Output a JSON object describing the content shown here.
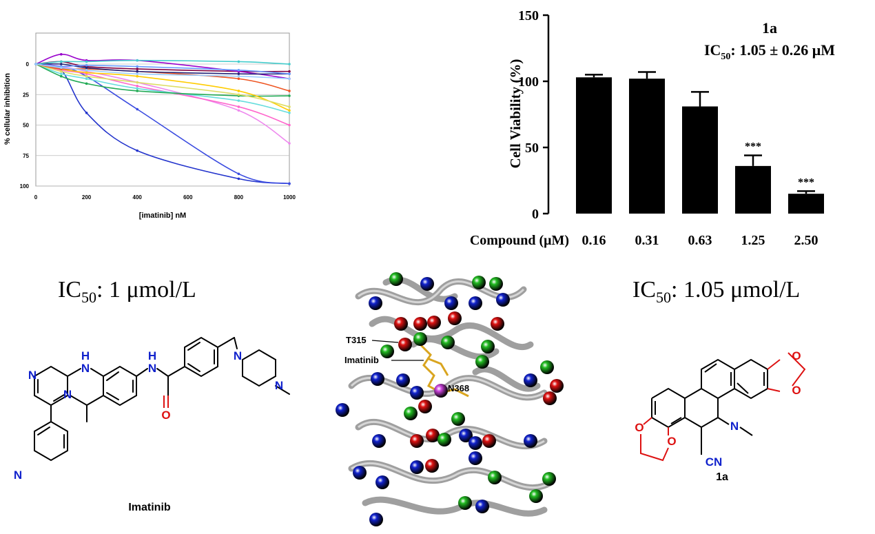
{
  "chart_data": [
    {
      "type": "line",
      "title": "",
      "xlabel": "[imatinib] nM",
      "ylabel": "% cellular inhibition",
      "xlim": [
        0,
        1000
      ],
      "ylim": [
        0,
        100
      ],
      "y_inverted": true,
      "x_ticks": [
        0,
        200,
        400,
        600,
        800,
        1000
      ],
      "y_ticks": [
        0,
        25,
        50,
        75,
        100
      ],
      "x_tick_labels": [
        "0",
        "200",
        "400",
        "600",
        "800",
        "1000"
      ],
      "y_tick_labels": [
        "0",
        "25",
        "50",
        "75",
        "100"
      ],
      "grid": "horizontal",
      "legend": "none",
      "x": [
        0,
        100,
        200,
        400,
        800,
        1000
      ],
      "series": [
        {
          "color": "#2233cc",
          "values": [
            0,
            5,
            40,
            71,
            94,
            98
          ]
        },
        {
          "color": "#3a4be0",
          "values": [
            0,
            2,
            10,
            37,
            90,
            98
          ]
        },
        {
          "color": "#ee88ee",
          "values": [
            0,
            2,
            6,
            15,
            38,
            65
          ]
        },
        {
          "color": "#ff66cc",
          "values": [
            0,
            5,
            8,
            18,
            35,
            50
          ]
        },
        {
          "color": "#66dddd",
          "values": [
            0,
            8,
            12,
            20,
            30,
            40
          ]
        },
        {
          "color": "#22aa55",
          "values": [
            0,
            10,
            16,
            22,
            26,
            26
          ]
        },
        {
          "color": "#ffcc00",
          "values": [
            0,
            4,
            7,
            10,
            22,
            38
          ]
        },
        {
          "color": "#dddd66",
          "values": [
            0,
            6,
            10,
            15,
            25,
            35
          ]
        },
        {
          "color": "#ee5522",
          "values": [
            0,
            4,
            4,
            6,
            12,
            22
          ]
        },
        {
          "color": "#800040",
          "values": [
            0,
            -2,
            2,
            4,
            6,
            6
          ]
        },
        {
          "color": "#9900cc",
          "values": [
            0,
            -8,
            -3,
            -3,
            6,
            12
          ]
        },
        {
          "color": "#222277",
          "values": [
            0,
            0,
            3,
            6,
            8,
            8
          ]
        },
        {
          "color": "#44cccc",
          "values": [
            0,
            -2,
            -2,
            -3,
            -2,
            0
          ]
        },
        {
          "color": "#6699ff",
          "values": [
            0,
            2,
            1,
            2,
            5,
            8
          ]
        },
        {
          "color": "#99ccff",
          "values": [
            0,
            3,
            5,
            8,
            10,
            12
          ]
        }
      ]
    },
    {
      "type": "bar",
      "title": "1a",
      "subtitle_prefix": "IC",
      "subtitle_sub": "50",
      "subtitle_suffix": ": 1.05 ± 0.26 μM",
      "xlabel": "Compound (μM)",
      "ylabel": "Cell Viability (%)",
      "categories": [
        "0.16",
        "0.31",
        "0.63",
        "1.25",
        "2.50"
      ],
      "values": [
        103,
        102,
        81,
        36,
        15
      ],
      "errors": [
        2,
        5,
        11,
        8,
        2
      ],
      "significance": [
        "",
        "",
        "",
        "***",
        "***"
      ],
      "ylim": [
        0,
        150
      ],
      "y_ticks": [
        0,
        50,
        100,
        150
      ],
      "y_tick_labels": [
        "0",
        "50",
        "100",
        "150"
      ],
      "bar_color": "#000000",
      "grid": "off",
      "legend": "none"
    }
  ],
  "labels": {
    "left_ic50_prefix": "IC",
    "left_ic50_sub": "50",
    "left_ic50_value": ":  1 μmol/L",
    "right_ic50_prefix": "IC",
    "right_ic50_sub": "50",
    "right_ic50_value": ":  1.05 μmol/L"
  },
  "imatinib_structure": {
    "name": "Imatinib",
    "atoms": [
      "N",
      "N",
      "N",
      "H",
      "N",
      "H",
      "O",
      "N",
      "N",
      "N"
    ]
  },
  "compound_1a_structure": {
    "name": "1a",
    "atoms": [
      "O",
      "O",
      "O",
      "O",
      "N",
      "CN"
    ]
  },
  "protein_structure": {
    "labels": [
      "T315",
      "Imatinib",
      "N368"
    ],
    "sphere_colors": [
      "#dd1111",
      "#22bb22",
      "#1122cc",
      "#cc44dd"
    ]
  }
}
